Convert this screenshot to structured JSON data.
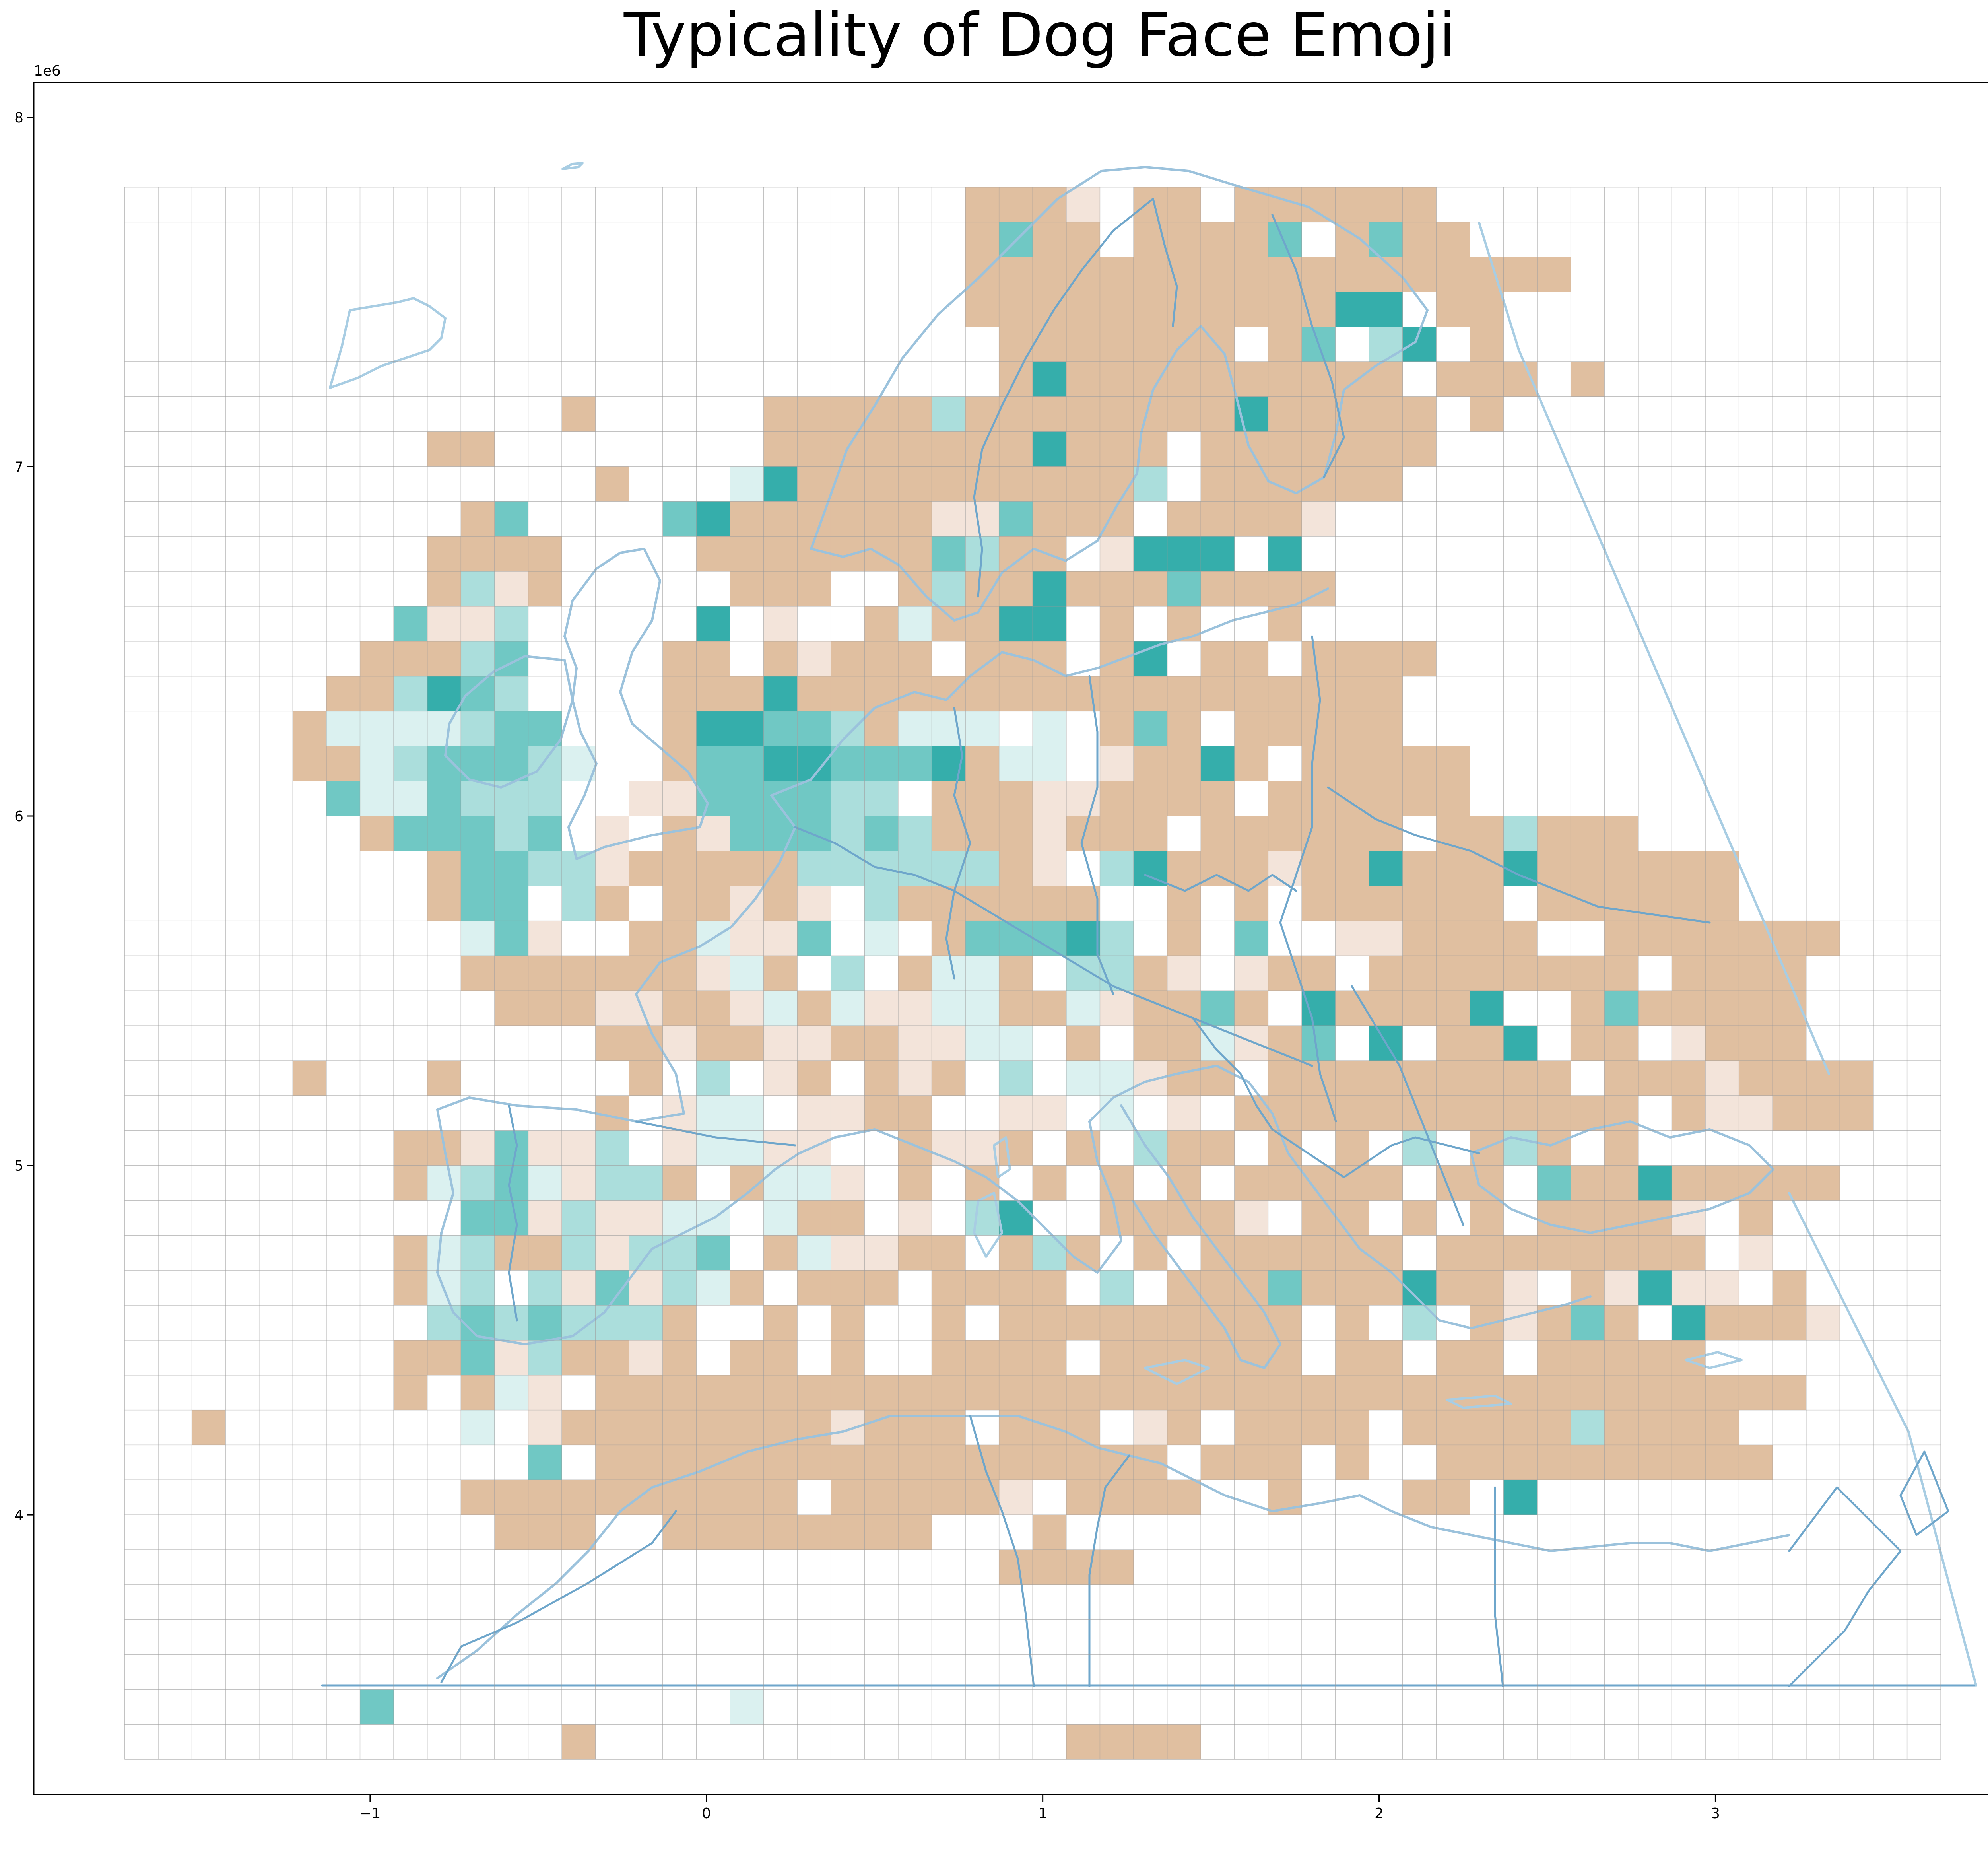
{
  "chart_data": {
    "type": "heatmap",
    "title": "Typicality of Dog Face Emoji",
    "x_offset_label": "1e6",
    "y_offset_label": "1e6",
    "x_ticks": [
      {
        "v": -1,
        "label": "−1"
      },
      {
        "v": 0,
        "label": "0"
      },
      {
        "v": 1,
        "label": "1"
      },
      {
        "v": 2,
        "label": "2"
      },
      {
        "v": 3,
        "label": "3"
      }
    ],
    "y_ticks": [
      {
        "v": 4,
        "label": "4"
      },
      {
        "v": 5,
        "label": "5"
      },
      {
        "v": 6,
        "label": "6"
      },
      {
        "v": 7,
        "label": "7"
      },
      {
        "v": 8,
        "label": "8"
      }
    ],
    "xlim": [
      -2.0,
      3.95
    ],
    "ylim": [
      3.2,
      8.1
    ],
    "grid": {
      "x0": -1.73,
      "y0": 3.3,
      "cell": 0.1,
      "cols": 54,
      "rows": 45
    },
    "colors": {
      "-2": "#e0bfa0",
      "-1": "#f3e4da",
      "0": "#ffffff",
      "1": "#dbf1f0",
      "2": "#abdedc",
      "3": "#70c8c4",
      "4": "#35aeab",
      "coast": "#8fbcd9",
      "border": "#5e9cc6",
      "gridline": "#999999"
    },
    "cell_rows_top_to_bottom": [
      "......................AwB.C............",
      ".........................B..........",
      "..........................B..............",
      "",
      "",
      "",
      "",
      ".",
      "",
      "",
      "",
      "",
      "",
      "",
      "",
      "",
      "",
      "",
      "",
      "",
      "",
      "",
      "",
      "",
      "",
      "",
      "",
      "",
      "",
      "",
      "",
      "",
      "",
      "",
      "",
      "",
      "",
      "",
      "",
      "",
      "",
      "",
      "",
      "",
      ""
    ],
    "cells": [
      [
        "",
        ""
      ]
    ],
    "rows": [
      "                         AAAB AA AAAAAA              ",
      "                         A3AA AAAA3 A3AA             ",
      "                         AAAAAAAAAAAAAAAAAA            ",
      "                         AAAAAAAAAAA44 AA              ",
      "                          AAAAAAA A3 24 A              ",
      "                          A4AAAAAAAAAA AAA A            ",
      "             A     AAAAA2AAAAAAAA4AAAAA A               ",
      "         AA        AAAAAAAA4AAA AAAAAAA                 ",
      "              A   14AAAAAAAAAA2 AAAAAA                  ",
      "          A3    34AAAAAABB3AAA AAAAB                    ",
      "         AAAA    AAAAAAA32AA B444 4                     ",
      "         A2BA     AAA  A2AA4AAA3AAAA                    ",
      "        3BB2     4 B  A1AA44 A A  A                     ",
      "       AAA23    AA ABAAA AAA A4 AA AAAA                 ",
      "      AA2432    AAA4AAAAAAAAAAAAAAAAAA                  ",
      "     A1111233   A44332A111 1 A3A AAAAA                  ",
      "     AA1233321  A33443334A11 BAA4A AAAAA                ",
      "      3113222  BB333322 AAABBAAAA AAAAAA                ",
      "       A33323 B AB333232AAABAAA AAAAAA AA2AAA            ",
      "         A3322BAAAAA222222AB 24AAABAA4AAA4AAAAAA         ",
      "         A33 2A AABAB 2AAAAAA  A A AAAAAA AAAAAA         ",
      "          13B  AA1BB3 1 A33342 A 3  BBAAAA  AAAAAAA      ",
      "          AAAAAAAB1A 2 A11A 22AB BAA AAAAAAAA AAAA       ",
      "           AAABBAAB1A1BB11AA1BAA3A 4AAAA4  A3AAAAA      ",
      "              AABAABBAABB11 A AA1BA3 4 AA4 AA BAAA       ",
      "     A   A     A 2 BA ABA 2 11BAA AAAAAAAAA AAABAAAA     ",
      "              A B11 BBAA  BB 1 B AAAAAAAAAAAA ABBAAA     ",
      "        AAB3BB2 B11BB  ABBA A 2AA A A 2 A2A A            ",
      "        A1231B22A A11B A A A A A AAAAA AA 3AA4AAAAA      ",
      "          33B2BB11 1AA B 24  AAAAB AA A A AAAAB A        ",
      "        A12AA2B223 A1BBAA A2A A AAAAAA AAAAAAAA B        ",
      "        A12 2B3B21A AAA AAAA 2 AAA3AAA4AAB AB4BB A       ",
      "         2323222A  A A  A AAAAAAAAA A 2 ABA3A 4AAAB     ",
      "        AA3B2AABA AA A  AAAA AAAAAA AA AA AAAAA          ",
      "        A A1B AAAAAAAAAAAAAAAAAAAAAAAAAAAAAAAAAAAA       ",
      "  A       1 BAAAAAAAABAAA AAA BA AAAA AAAAA2AAAA        ",
      "            3 AAAAAAAAAAAAAAAAA AAA A  AAAAAAAAAA        ",
      "          AAAAAAAAAA AAAAAB AAAA  A   AA 4              ",
      "           AAA  AAAAAAAA   A                            ",
      "                          AAAA                          ",
      "",
      "",
      "",
      "       3          1                                    ",
      "             A              AAAA                       "
    ]
  }
}
